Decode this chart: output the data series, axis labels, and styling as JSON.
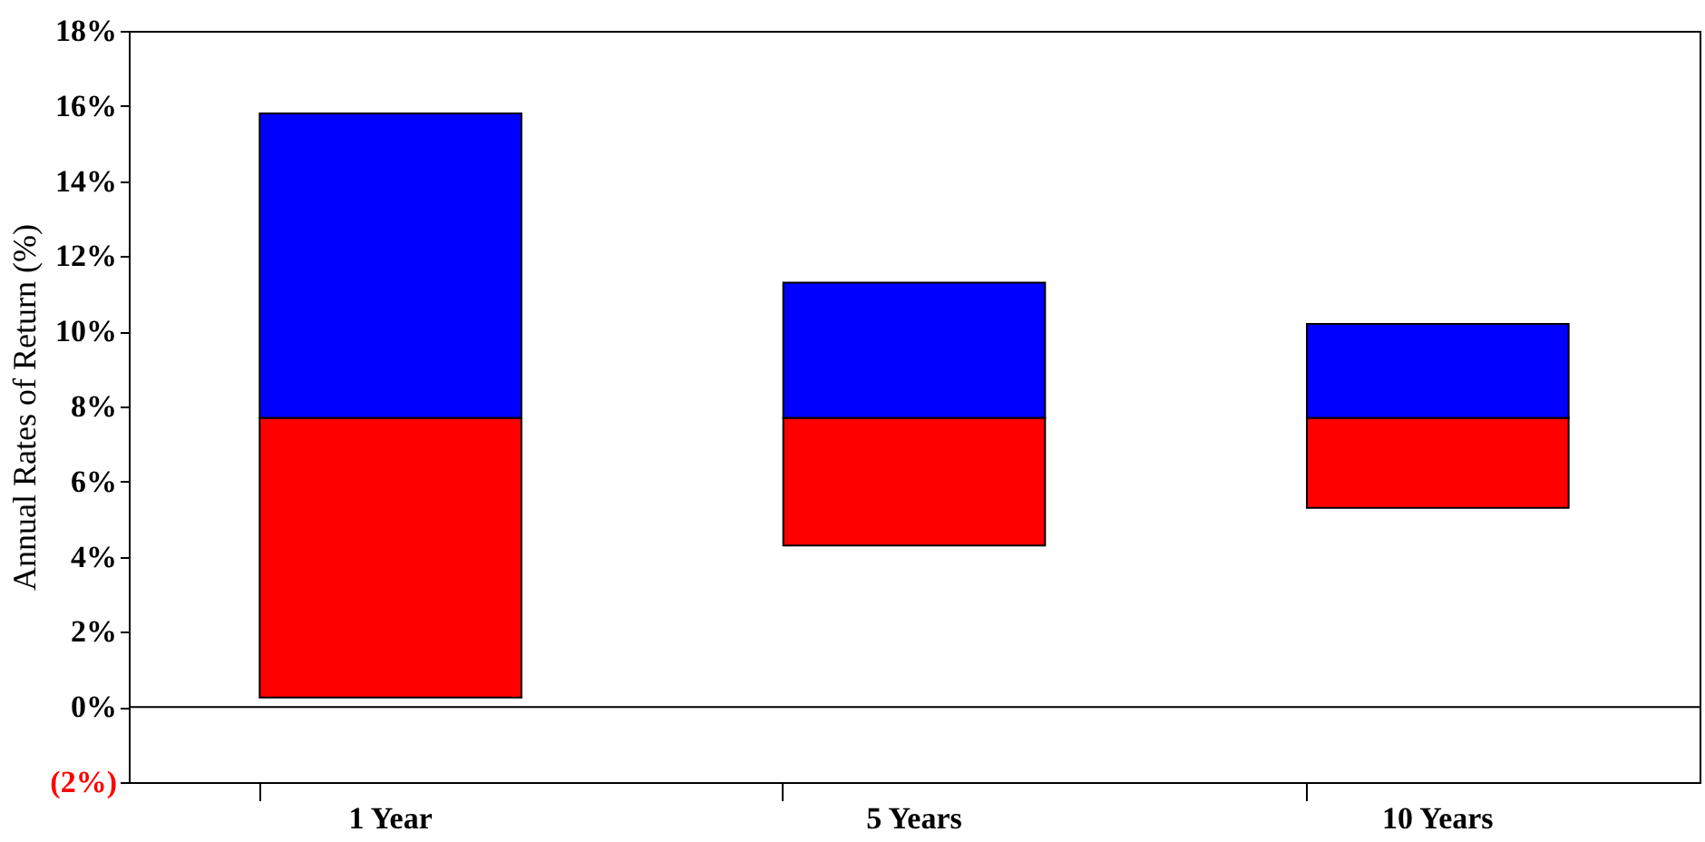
{
  "chart_data": {
    "type": "bar",
    "ylabel": "Annual Rates of Return (%)",
    "categories": [
      "1 Year",
      "5 Years",
      "10 Years"
    ],
    "series": [
      {
        "color": "#ff0000",
        "base": [
          0.25,
          4.3,
          5.3
        ],
        "values": [
          7.45,
          3.4,
          2.4
        ]
      },
      {
        "color": "#0000ff",
        "base": [
          7.7,
          7.7,
          7.7
        ],
        "values": [
          8.1,
          3.6,
          2.5
        ]
      }
    ],
    "ylim": [
      -2,
      18
    ],
    "yticks": [
      {
        "value": -2,
        "label": "(2%)"
      },
      {
        "value": 0,
        "label": "0%"
      },
      {
        "value": 2,
        "label": "2%"
      },
      {
        "value": 4,
        "label": "4%"
      },
      {
        "value": 6,
        "label": "6%"
      },
      {
        "value": 8,
        "label": "8%"
      },
      {
        "value": 10,
        "label": "10%"
      },
      {
        "value": 12,
        "label": "12%"
      },
      {
        "value": 14,
        "label": "14%"
      },
      {
        "value": 16,
        "label": "16%"
      },
      {
        "value": 18,
        "label": "18%"
      }
    ],
    "ref_lines": [
      {
        "axis": "y",
        "value": 0,
        "color": "#000000"
      }
    ],
    "grid": false
  }
}
